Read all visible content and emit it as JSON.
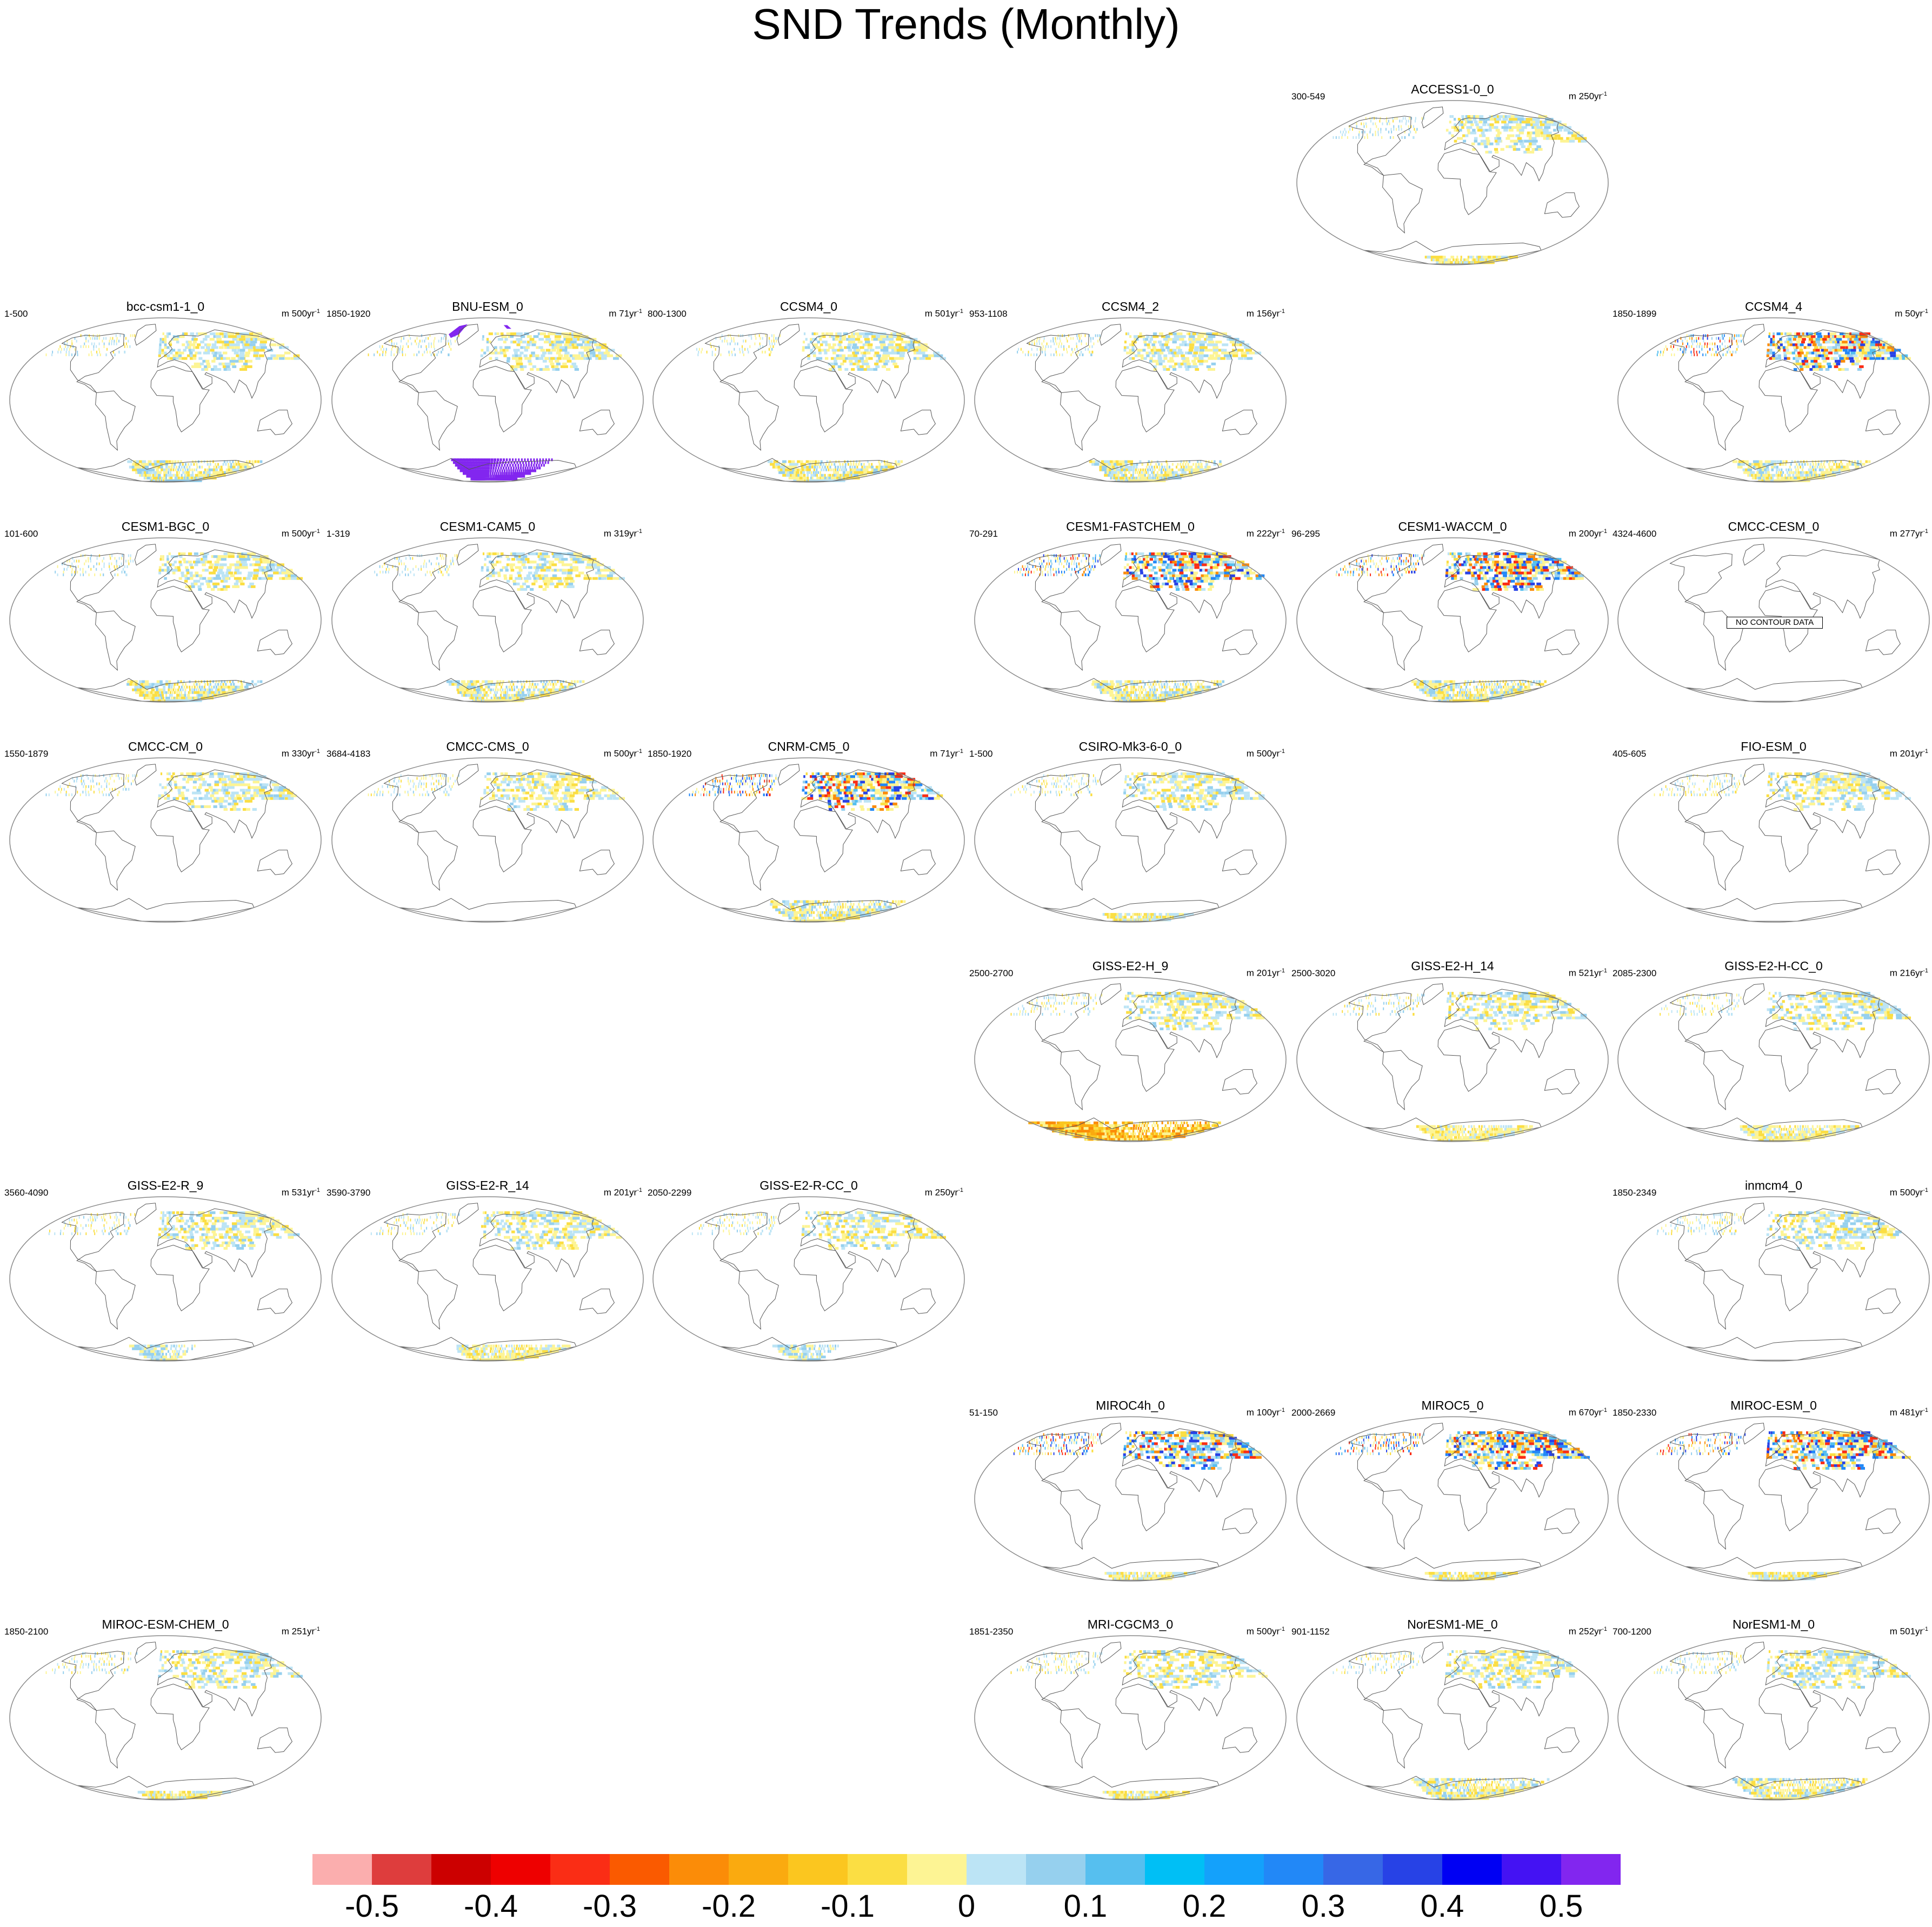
{
  "title": "SND Trends (Monthly)",
  "no_data_text": "NO CONTOUR DATA",
  "legend": {
    "labels": [
      "-0.5",
      "-0.4",
      "-0.3",
      "-0.2",
      "-0.1",
      "0",
      "0.1",
      "0.2",
      "0.3",
      "0.4",
      "0.5"
    ],
    "colors": [
      "#fbaeae",
      "#de3d3d",
      "#cc0000",
      "#ee0000",
      "#fa2d15",
      "#fa5a00",
      "#fb8c08",
      "#faaa0f",
      "#fbc61f",
      "#fbde43",
      "#fdf494",
      "#bce4f5",
      "#96d0ee",
      "#56bfef",
      "#00bff5",
      "#14a1fb",
      "#2288f7",
      "#3767e6",
      "#2742e6",
      "#0000f3",
      "#4412f3",
      "#8226ef"
    ]
  },
  "panels": [
    {
      "name": "ACCESS1-0_0",
      "range": "300-549",
      "units": "m 250yr",
      "row": 0,
      "col": 4,
      "style": "light",
      "ant": "strip"
    },
    {
      "name": "bcc-csm1-1_0",
      "range": "1-500",
      "units": "m 500yr",
      "row": 1,
      "col": 0,
      "style": "light",
      "ant": "full"
    },
    {
      "name": "BNU-ESM_0",
      "range": "1850-1920",
      "units": "m 71yr",
      "row": 1,
      "col": 1,
      "style": "bnu",
      "ant": "purple"
    },
    {
      "name": "CCSM4_0",
      "range": "800-1300",
      "units": "m 501yr",
      "row": 1,
      "col": 2,
      "style": "light",
      "ant": "full"
    },
    {
      "name": "CCSM4_2",
      "range": "953-1108",
      "units": "m 156yr",
      "row": 1,
      "col": 3,
      "style": "light",
      "ant": "full"
    },
    {
      "name": "CCSM4_4",
      "range": "1850-1899",
      "units": "m 50yr",
      "row": 1,
      "col": 5,
      "style": "strong",
      "ant": "full"
    },
    {
      "name": "CESM1-BGC_0",
      "range": "101-600",
      "units": "m 500yr",
      "row": 2,
      "col": 0,
      "style": "light",
      "ant": "full"
    },
    {
      "name": "CESM1-CAM5_0",
      "range": "1-319",
      "units": "m 319yr",
      "row": 2,
      "col": 1,
      "style": "light",
      "ant": "full"
    },
    {
      "name": "CESM1-FASTCHEM_0",
      "range": "70-291",
      "units": "m 222yr",
      "row": 2,
      "col": 3,
      "style": "strong",
      "ant": "full"
    },
    {
      "name": "CESM1-WACCM_0",
      "range": "96-295",
      "units": "m 200yr",
      "row": 2,
      "col": 4,
      "style": "strong",
      "ant": "full"
    },
    {
      "name": "CMCC-CESM_0",
      "range": "4324-4600",
      "units": "m 277yr",
      "row": 2,
      "col": 5,
      "style": "none",
      "ant": "none"
    },
    {
      "name": "CMCC-CM_0",
      "range": "1550-1879",
      "units": "m 330yr",
      "row": 3,
      "col": 0,
      "style": "light",
      "ant": "none"
    },
    {
      "name": "CMCC-CMS_0",
      "range": "3684-4183",
      "units": "m 500yr",
      "row": 3,
      "col": 1,
      "style": "light",
      "ant": "none"
    },
    {
      "name": "CNRM-CM5_0",
      "range": "1850-1920",
      "units": "m 71yr",
      "row": 3,
      "col": 2,
      "style": "strong",
      "ant": "full"
    },
    {
      "name": "CSIRO-Mk3-6-0_0",
      "range": "1-500",
      "units": "m 500yr",
      "row": 3,
      "col": 3,
      "style": "light",
      "ant": "strip"
    },
    {
      "name": "FIO-ESM_0",
      "range": "405-605",
      "units": "m 201yr",
      "row": 3,
      "col": 5,
      "style": "light",
      "ant": "none"
    },
    {
      "name": "GISS-E2-H_9",
      "range": "2500-2700",
      "units": "m 201yr",
      "row": 4,
      "col": 3,
      "style": "light",
      "ant": "orange"
    },
    {
      "name": "GISS-E2-H_14",
      "range": "2500-3020",
      "units": "m 521yr",
      "row": 4,
      "col": 4,
      "style": "light",
      "ant": "yellowpart"
    },
    {
      "name": "GISS-E2-H-CC_0",
      "range": "2085-2300",
      "units": "m 216yr",
      "row": 4,
      "col": 5,
      "style": "light",
      "ant": "yellowpart"
    },
    {
      "name": "GISS-E2-R_9",
      "range": "3560-4090",
      "units": "m 531yr",
      "row": 5,
      "col": 0,
      "style": "light",
      "ant": "bluepart"
    },
    {
      "name": "GISS-E2-R_14",
      "range": "3590-3790",
      "units": "m 201yr",
      "row": 5,
      "col": 1,
      "style": "light",
      "ant": "yellowpart"
    },
    {
      "name": "GISS-E2-R-CC_0",
      "range": "2050-2299",
      "units": "m 250yr",
      "row": 5,
      "col": 2,
      "style": "light",
      "ant": "bluepart"
    },
    {
      "name": "inmcm4_0",
      "range": "1850-2349",
      "units": "m 500yr",
      "row": 5,
      "col": 5,
      "style": "light",
      "ant": "none"
    },
    {
      "name": "MIROC4h_0",
      "range": "51-150",
      "units": "m 100yr",
      "row": 6,
      "col": 3,
      "style": "strong",
      "ant": "strip"
    },
    {
      "name": "MIROC5_0",
      "range": "2000-2669",
      "units": "m 670yr",
      "row": 6,
      "col": 4,
      "style": "strong",
      "ant": "strip"
    },
    {
      "name": "MIROC-ESM_0",
      "range": "1850-2330",
      "units": "m 481yr",
      "row": 6,
      "col": 5,
      "style": "strong",
      "ant": "strip"
    },
    {
      "name": "MIROC-ESM-CHEM_0",
      "range": "1850-2100",
      "units": "m 251yr",
      "row": 7,
      "col": 0,
      "style": "light",
      "ant": "strip"
    },
    {
      "name": "MRI-CGCM3_0",
      "range": "1851-2350",
      "units": "m 500yr",
      "row": 7,
      "col": 3,
      "style": "light",
      "ant": "strip"
    },
    {
      "name": "NorESM1-ME_0",
      "range": "901-1152",
      "units": "m 252yr",
      "row": 7,
      "col": 4,
      "style": "light",
      "ant": "full"
    },
    {
      "name": "NorESM1-M_0",
      "range": "700-1200",
      "units": "m 501yr",
      "row": 7,
      "col": 5,
      "style": "light",
      "ant": "full"
    }
  ]
}
